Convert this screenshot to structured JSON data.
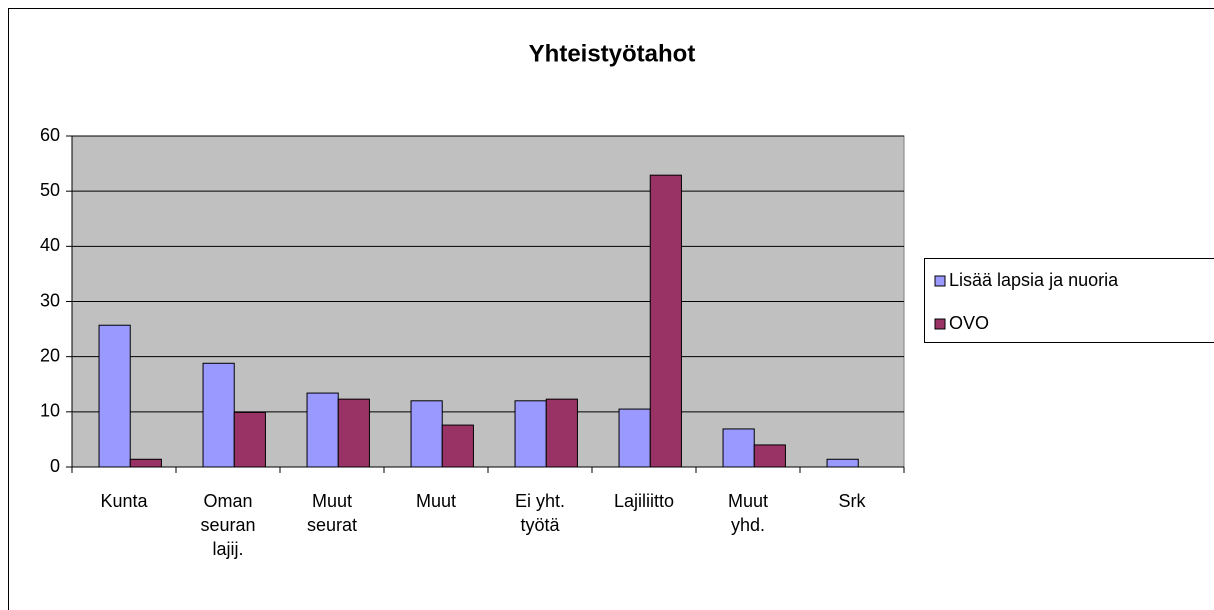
{
  "chart_data": {
    "type": "bar",
    "title": "Yhteistyötahot",
    "categories": [
      "Kunta",
      "Oman seuran lajij.",
      "Muut seurat",
      "Muut",
      "Ei yht. työtä",
      "Lajiliitto",
      "Muut yhd.",
      "Srk"
    ],
    "series": [
      {
        "name": "Lisää lapsia ja nuoria",
        "color": "#9999ff",
        "values": [
          25.7,
          18.8,
          13.4,
          12.0,
          12.0,
          10.5,
          6.9,
          1.4
        ]
      },
      {
        "name": "OVO",
        "color": "#993366",
        "values": [
          1.4,
          9.9,
          12.3,
          7.6,
          12.3,
          52.9,
          4.0,
          0
        ]
      }
    ],
    "ylim": [
      0,
      60
    ],
    "yticks": [
      0,
      10,
      20,
      30,
      40,
      50,
      60
    ],
    "grid": true,
    "legend": "right"
  }
}
